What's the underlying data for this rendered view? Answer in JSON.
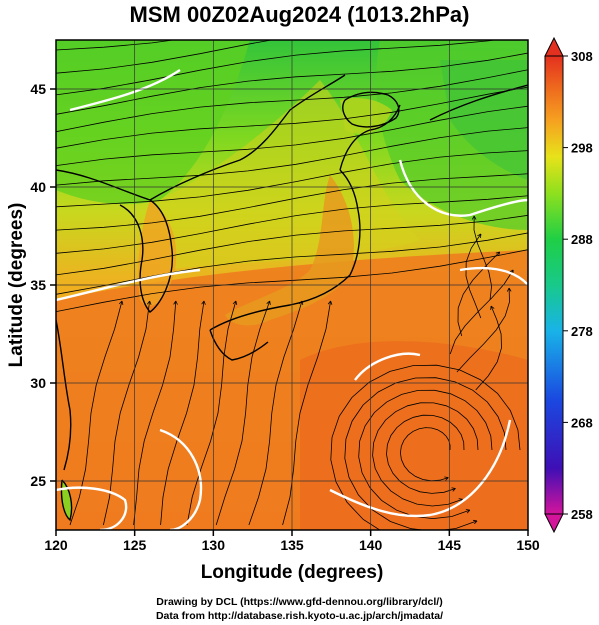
{
  "title": "MSM 00Z02Aug2024 (1013.2hPa)",
  "map": {
    "lon_range": [
      120,
      150
    ],
    "lat_range": [
      22.5,
      47.5
    ],
    "x_label": "Longitude (degrees)",
    "y_label": "Latitude  (degrees)",
    "x_ticks": [
      "120",
      "125",
      "130",
      "135",
      "140",
      "145",
      "150"
    ],
    "x_tick_values": [
      120,
      125,
      130,
      135,
      140,
      145,
      150
    ],
    "y_ticks": [
      "25",
      "30",
      "35",
      "40",
      "45"
    ],
    "y_tick_values": [
      25,
      30,
      35,
      40,
      45
    ],
    "field": "temperature",
    "overlay": "streamlines"
  },
  "colorbar": {
    "min": 258,
    "max": 308,
    "tick_labels": [
      "308",
      "298",
      "288",
      "278",
      "268",
      "258"
    ],
    "tick_values": [
      308,
      298,
      288,
      278,
      268,
      258
    ],
    "colors": [
      "#d4149b",
      "#3e0fb5",
      "#1a49e0",
      "#19b3e8",
      "#18c98a",
      "#1fcf45",
      "#8ee01e",
      "#e7e21a",
      "#f6a020",
      "#ee6a1e",
      "#e4301f"
    ]
  },
  "credits": {
    "drawing": "Drawing by DCL (https://www.gfd-dennou.org/library/dcl/)",
    "data": "Data from http://database.rish.kyoto-u.ac.jp/arch/jmadata/"
  }
}
